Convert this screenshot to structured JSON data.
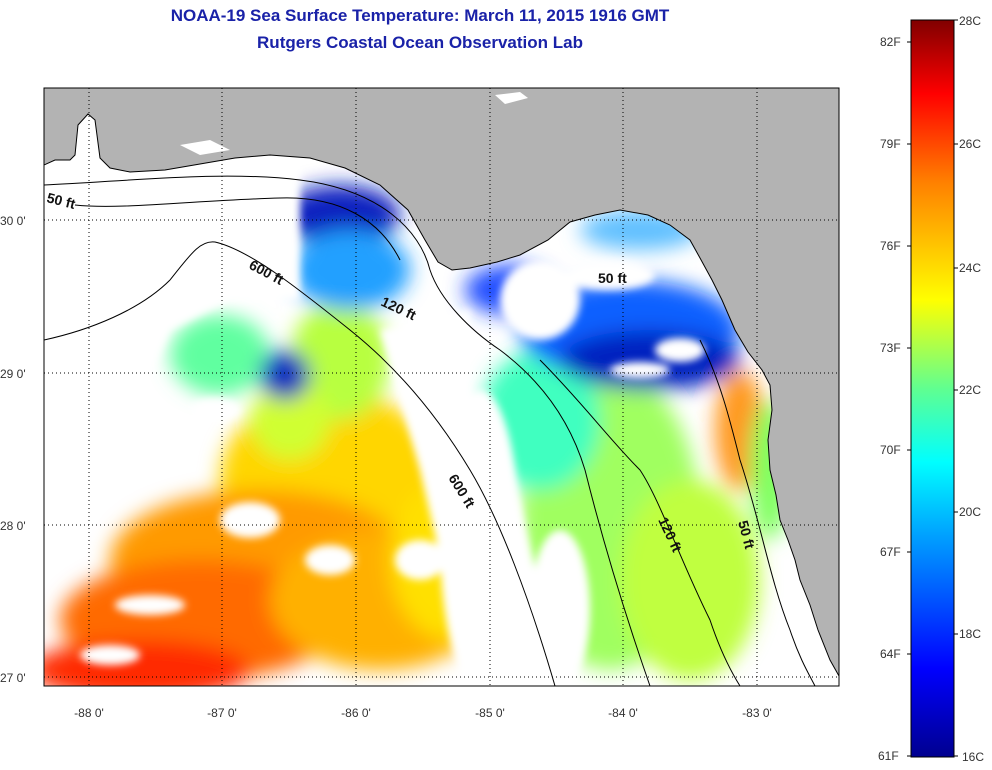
{
  "title": "NOAA-19 Sea Surface Temperature:  March 11, 2015 1916 GMT",
  "subtitle": "Rutgers Coastal Ocean Observation Lab",
  "lon_ticks": [
    "-88 0'",
    "-87 0'",
    "-86 0'",
    "-85 0'",
    "-84 0'",
    "-83 0'"
  ],
  "lat_ticks": [
    "30 0'",
    "29 0'",
    "28 0'",
    "27 0'"
  ],
  "contours": [
    {
      "label": "50 ft"
    },
    {
      "label": "600 ft"
    },
    {
      "label": "120 ft"
    },
    {
      "label": "50 ft"
    },
    {
      "label": "600 ft"
    },
    {
      "label": "120 ft"
    },
    {
      "label": "50 ft"
    }
  ],
  "colorbar": {
    "celsius": [
      "28C",
      "26C",
      "24C",
      "22C",
      "20C",
      "18C",
      "16C"
    ],
    "fahrenheit": [
      "82F",
      "79F",
      "76F",
      "73F",
      "70F",
      "67F",
      "64F",
      "61F"
    ],
    "colors": [
      "#00008f",
      "#0000ff",
      "#00a0ff",
      "#00ffff",
      "#60ff90",
      "#ffff00",
      "#ff8000",
      "#ff0000",
      "#800000"
    ]
  },
  "colors": {
    "land": "#b3b3b3",
    "water": "#ffffff",
    "title": "#1a22a8"
  }
}
